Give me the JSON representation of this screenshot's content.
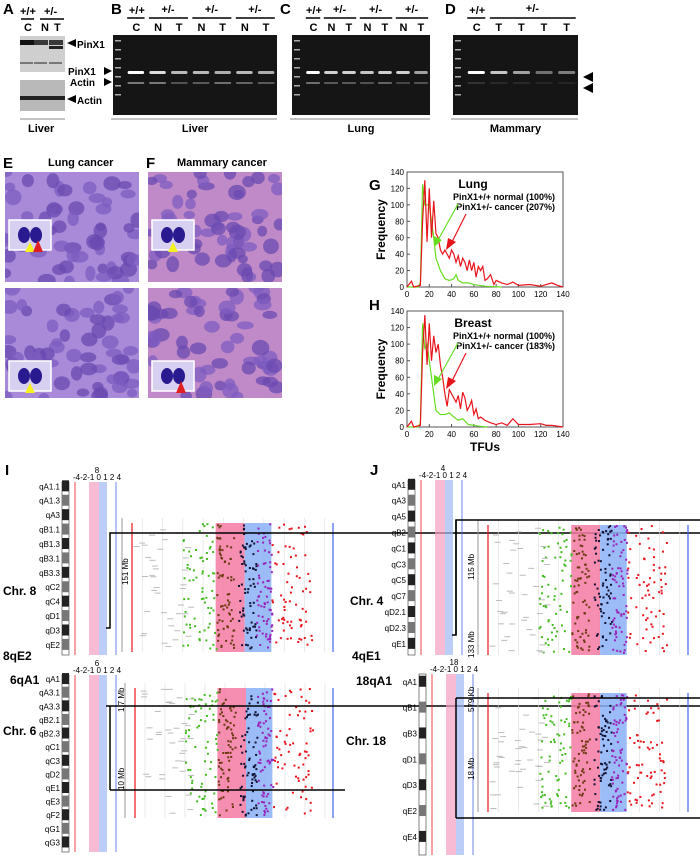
{
  "panels": {
    "A": {
      "label": "A",
      "genotypes": [
        "+/+",
        "+/-"
      ],
      "lanes": [
        "C",
        "N",
        "T"
      ],
      "bands": [
        "PinX1",
        "Actin"
      ],
      "tissue": "Liver"
    },
    "B": {
      "label": "B",
      "genotypes": [
        "+/+",
        "+/-",
        "+/-",
        "+/-"
      ],
      "lanes": [
        "C",
        "N",
        "T",
        "N",
        "T",
        "N",
        "T"
      ],
      "band_labels": [
        "PinX1",
        "Actin"
      ],
      "tissue": "Liver"
    },
    "C": {
      "label": "C",
      "genotypes": [
        "+/+",
        "+/-",
        "+/-",
        "+/-"
      ],
      "lanes": [
        "C",
        "N",
        "T",
        "N",
        "T",
        "N",
        "T"
      ],
      "tissue": "Lung"
    },
    "D": {
      "label": "D",
      "genotypes": [
        "+/+",
        "+/-"
      ],
      "lanes": [
        "C",
        "T",
        "T",
        "T",
        "T"
      ],
      "tissue": "Mammary"
    },
    "E": {
      "label": "E",
      "title": "Lung cancer"
    },
    "F": {
      "label": "F",
      "title": "Mammary cancer"
    },
    "I": {
      "label": "I",
      "top": {
        "chr_label": "Chr. 8",
        "band_label": "8qE2",
        "chr_number": "8",
        "scale": "-4-2-1 0 1 2 4",
        "size_label": "151 Mb",
        "bands": [
          "qA1.1",
          "qA1.3",
          "qA3",
          "qB1.1",
          "qB1.3",
          "qB3.1",
          "qB3.3",
          "qC2",
          "qC4",
          "qD1",
          "qD3",
          "qE2"
        ]
      },
      "bottom": {
        "chr_label": "Chr. 6",
        "band_label": "6qA1",
        "chr_number": "6",
        "scale": "-4-2-1 0 1 2 4",
        "size_labels": [
          "1.7 Mb",
          "10 Mb"
        ],
        "bands": [
          "qA1",
          "qA3.1",
          "qA3.3",
          "qB2.1",
          "qB2.3",
          "qC1",
          "qC3",
          "qD2",
          "qE1",
          "qE3",
          "qF2",
          "qG1",
          "qG3"
        ]
      }
    },
    "J": {
      "label": "J",
      "top": {
        "chr_label": "Chr. 4",
        "band_label": "4qE1",
        "chr_number": "4",
        "scale": "-4-2-1 0 1 2 4",
        "size_labels": [
          "115 Mb",
          "133 Mb"
        ],
        "bands": [
          "qA1",
          "qA3",
          "qA5",
          "qB2",
          "qC1",
          "qC3",
          "qC5",
          "qC7",
          "qD2.1",
          "qD2.3",
          "qE1"
        ]
      },
      "bottom": {
        "chr_label": "Chr. 18",
        "band_label": "18qA1",
        "chr_number": "18",
        "scale": "-4-2-1 0 1 2 4",
        "size_labels": [
          "579 Kb",
          "18 Mb"
        ],
        "bands": [
          "qA1",
          "qB1",
          "qB3",
          "qD1",
          "qD3",
          "qE2",
          "qE4"
        ]
      }
    }
  },
  "colors": {
    "normal": "#66dd22",
    "cancer": "#e8141c",
    "loss_shade": "#f080a8",
    "gain_shade": "#88aaf5",
    "gel": "#111111",
    "tissue": "#8a6cc8"
  },
  "chart_data": [
    {
      "panel": "G",
      "type": "line",
      "title": "Lung",
      "xlabel": "",
      "ylabel": "Frequency",
      "xlim": [
        0,
        140
      ],
      "ylim": [
        0,
        140
      ],
      "xticks": [
        0,
        20,
        40,
        60,
        80,
        100,
        120,
        140
      ],
      "yticks": [
        0,
        20,
        40,
        60,
        80,
        100,
        120,
        140
      ],
      "grid": false,
      "series": [
        {
          "name": "PinX1+/+ normal (100%)",
          "color": "#66dd22",
          "x": [
            0,
            10,
            12,
            14,
            16,
            18,
            20,
            22,
            24,
            26,
            30,
            34,
            38,
            42,
            44,
            46,
            50,
            55,
            60,
            70,
            85
          ],
          "y": [
            0,
            0,
            5,
            125,
            100,
            100,
            100,
            80,
            60,
            35,
            20,
            10,
            8,
            10,
            15,
            8,
            5,
            5,
            3,
            1,
            0
          ]
        },
        {
          "name": "PinX1+/- cancer (207%)",
          "color": "#e8141c",
          "x": [
            0,
            4,
            6,
            12,
            14,
            16,
            18,
            20,
            22,
            24,
            26,
            28,
            30,
            32,
            34,
            36,
            38,
            40,
            42,
            44,
            46,
            48,
            50,
            52,
            54,
            56,
            58,
            60,
            62,
            64,
            66,
            68,
            70,
            72,
            75,
            78,
            80,
            85,
            90,
            95,
            100,
            110,
            120,
            130,
            135,
            140
          ],
          "y": [
            0,
            7,
            0,
            2,
            80,
            130,
            55,
            120,
            60,
            105,
            65,
            60,
            45,
            40,
            45,
            40,
            35,
            45,
            40,
            30,
            38,
            25,
            35,
            30,
            20,
            33,
            20,
            30,
            12,
            25,
            20,
            25,
            8,
            10,
            15,
            3,
            8,
            5,
            3,
            6,
            2,
            3,
            1,
            5,
            2,
            0
          ]
        }
      ]
    },
    {
      "panel": "H",
      "type": "line",
      "title": "Breast",
      "xlabel": "TFUs",
      "ylabel": "Frequency",
      "xlim": [
        0,
        140
      ],
      "ylim": [
        0,
        140
      ],
      "xticks": [
        0,
        20,
        40,
        60,
        80,
        100,
        120,
        140
      ],
      "yticks": [
        0,
        20,
        40,
        60,
        80,
        100,
        120,
        140
      ],
      "grid": false,
      "series": [
        {
          "name": "PinX1+/+ normal (100%)",
          "color": "#66dd22",
          "x": [
            0,
            10,
            12,
            14,
            16,
            18,
            20,
            22,
            24,
            26,
            30,
            34,
            38,
            42,
            46,
            50,
            55,
            60,
            65,
            72
          ],
          "y": [
            0,
            0,
            5,
            125,
            95,
            100,
            80,
            60,
            40,
            20,
            15,
            15,
            17,
            12,
            8,
            10,
            3,
            2,
            1,
            0
          ]
        },
        {
          "name": "PinX1+/- cancer (183%)",
          "color": "#e8141c",
          "x": [
            0,
            4,
            6,
            12,
            14,
            16,
            18,
            20,
            22,
            24,
            26,
            28,
            30,
            32,
            34,
            36,
            38,
            40,
            42,
            44,
            46,
            48,
            50,
            52,
            54,
            56,
            58,
            60,
            62,
            64,
            66,
            70,
            75,
            80,
            85,
            90,
            95,
            100,
            110,
            120,
            125,
            130,
            140
          ],
          "y": [
            0,
            7,
            0,
            2,
            90,
            135,
            75,
            125,
            80,
            110,
            90,
            100,
            75,
            60,
            40,
            25,
            45,
            40,
            35,
            30,
            38,
            22,
            42,
            35,
            20,
            25,
            32,
            15,
            22,
            10,
            12,
            8,
            5,
            3,
            5,
            2,
            10,
            3,
            3,
            4,
            2,
            2,
            0
          ]
        }
      ]
    }
  ]
}
